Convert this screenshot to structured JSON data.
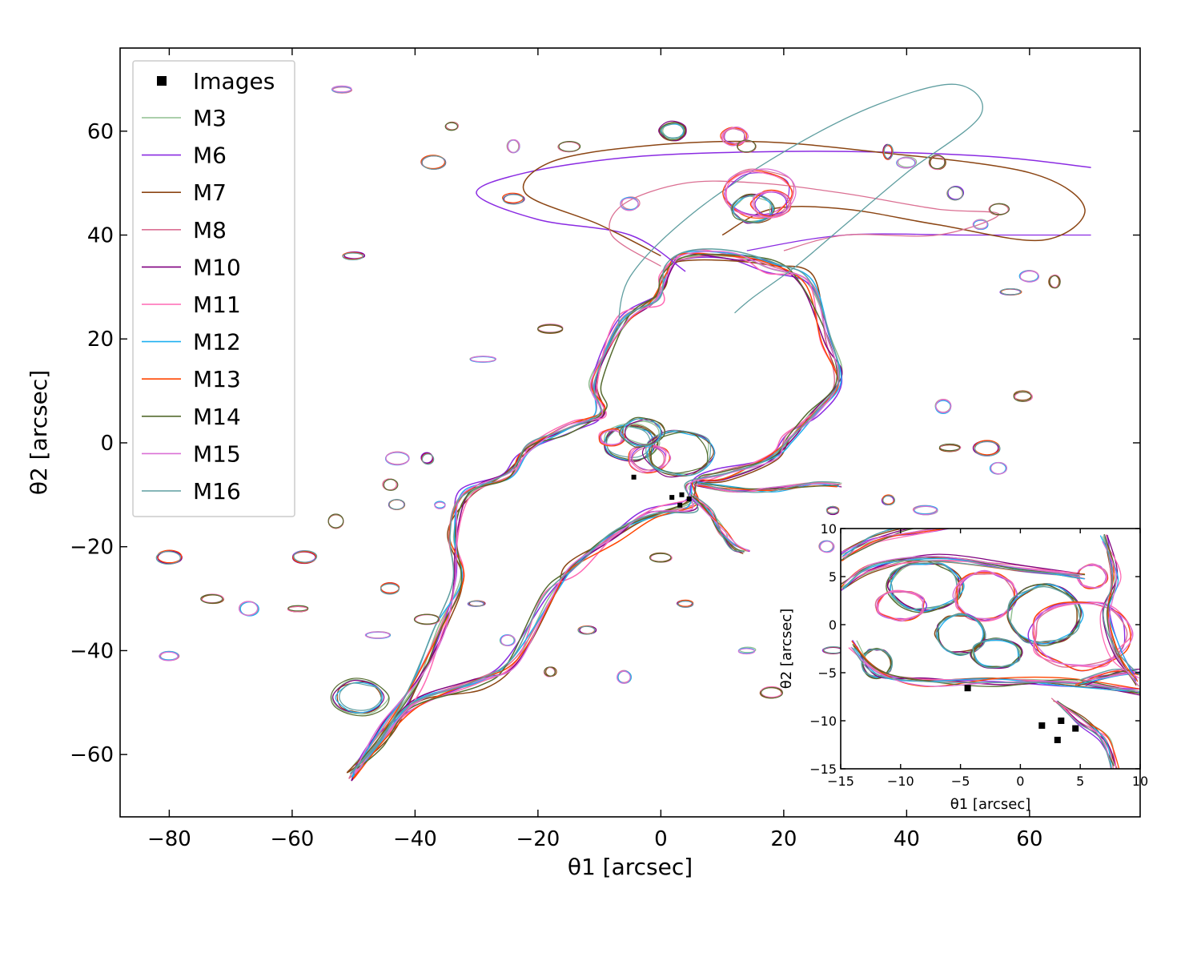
{
  "chart_data": [
    {
      "type": "line",
      "name": "main",
      "xlabel": "θ1 [arcsec]",
      "ylabel": "θ2 [arcsec]",
      "xlim": [
        -88,
        78
      ],
      "ylim": [
        -72,
        76
      ],
      "xticks": [
        -80,
        -60,
        -40,
        -20,
        0,
        20,
        40,
        60
      ],
      "yticks": [
        -60,
        -40,
        -20,
        0,
        20,
        40,
        60
      ],
      "xtick_labels": [
        "−80",
        "−60",
        "−40",
        "−20",
        "0",
        "20",
        "40",
        "60"
      ],
      "ytick_labels": [
        "−60",
        "−40",
        "−20",
        "0",
        "20",
        "40",
        "60"
      ],
      "grid": false,
      "legend_position": "top-left",
      "images": {
        "name": "Images",
        "marker": "square",
        "color": "#000000",
        "x": [
          -4.4,
          1.8,
          3.4,
          4.6,
          3.1
        ],
        "y": [
          -6.6,
          -10.5,
          -10.0,
          -10.8,
          -12.0
        ]
      },
      "series": [
        {
          "name": "M3",
          "color": "#8fbf8f"
        },
        {
          "name": "M6",
          "color": "#8a2be2"
        },
        {
          "name": "M7",
          "color": "#8b4513"
        },
        {
          "name": "M8",
          "color": "#db7093"
        },
        {
          "name": "M10",
          "color": "#800080"
        },
        {
          "name": "M11",
          "color": "#ff69b4"
        },
        {
          "name": "M12",
          "color": "#1fb0f0"
        },
        {
          "name": "M13",
          "color": "#ff4500"
        },
        {
          "name": "M14",
          "color": "#556b2f"
        },
        {
          "name": "M15",
          "color": "#da70d6"
        },
        {
          "name": "M16",
          "color": "#5f9ea0"
        }
      ]
    },
    {
      "type": "line",
      "name": "inset",
      "xlabel": "θ1 [arcsec]",
      "ylabel": "θ2 [arcsec]",
      "xlim": [
        -15,
        10
      ],
      "ylim": [
        -15,
        10
      ],
      "xticks": [
        -15,
        -10,
        -5,
        0,
        5,
        10
      ],
      "yticks": [
        -15,
        -10,
        -5,
        0,
        5,
        10
      ],
      "xtick_labels": [
        "−15",
        "−10",
        "−5",
        "0",
        "5",
        "10"
      ],
      "ytick_labels": [
        "−15",
        "−10",
        "−5",
        "0",
        "5",
        "10"
      ]
    }
  ]
}
